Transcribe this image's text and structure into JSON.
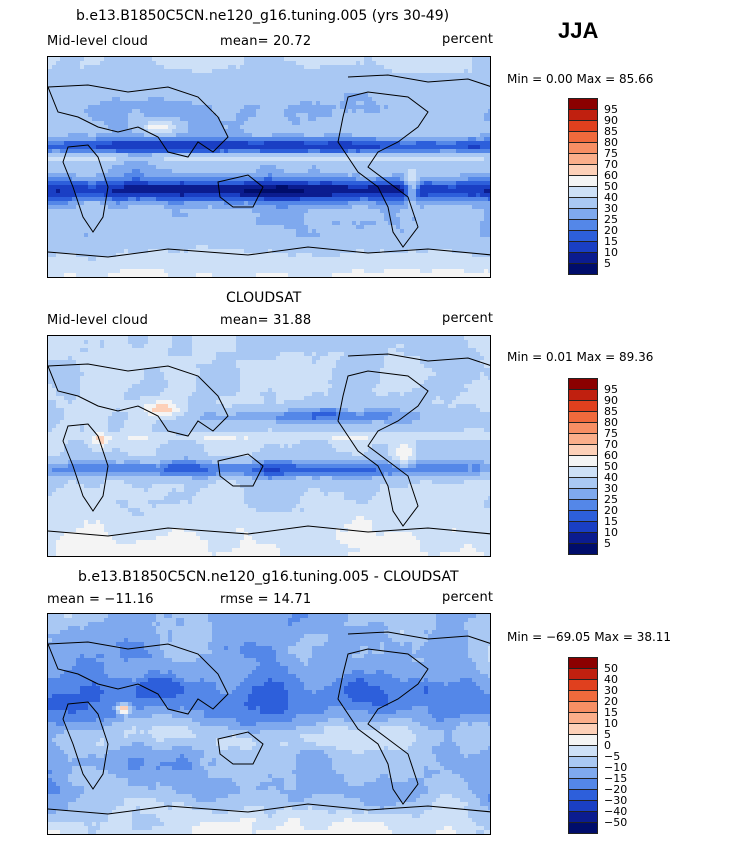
{
  "season": "JJA",
  "panels": [
    {
      "title": "b.e13.B1850C5CN.ne120_g16.tuning.005 (yrs 30-49)",
      "left_label": "Mid-level cloud",
      "mid_label": "mean=  20.72",
      "right_label": "percent",
      "minmax": "Min =    0.00 Max =   85.66",
      "colorbar_labels": [
        "95",
        "90",
        "85",
        "80",
        "75",
        "70",
        "60",
        "50",
        "40",
        "30",
        "25",
        "20",
        "15",
        "10",
        "5"
      ],
      "colors": [
        "#8b0000",
        "#c0200f",
        "#e0401e",
        "#f06a3c",
        "#f78f64",
        "#fbae8a",
        "#fdd0b8",
        "#f4f4f4",
        "#cde0f7",
        "#a9c8f3",
        "#7fa9ee",
        "#5487e8",
        "#2d5fdb",
        "#1a3fc4",
        "#0b1c8f",
        "#000d6b"
      ],
      "kind": "model"
    },
    {
      "title": "CLOUDSAT",
      "left_label": "Mid-level cloud",
      "mid_label": "mean=  31.88",
      "right_label": "percent",
      "minmax": "Min =    0.01 Max =   89.36",
      "colorbar_labels": [
        "95",
        "90",
        "85",
        "80",
        "75",
        "70",
        "60",
        "50",
        "40",
        "30",
        "25",
        "20",
        "15",
        "10",
        "5"
      ],
      "colors": [
        "#8b0000",
        "#c0200f",
        "#e0401e",
        "#f06a3c",
        "#f78f64",
        "#fbae8a",
        "#fdd0b8",
        "#f4f4f4",
        "#cde0f7",
        "#a9c8f3",
        "#7fa9ee",
        "#5487e8",
        "#2d5fdb",
        "#1a3fc4",
        "#0b1c8f",
        "#000d6b"
      ],
      "kind": "obs"
    },
    {
      "title": "b.e13.B1850C5CN.ne120_g16.tuning.005 - CLOUDSAT",
      "left_label": "mean = −11.16",
      "mid_label": "rmse =   14.71",
      "right_label": "percent",
      "minmax": "Min = −69.05 Max =   38.11",
      "colorbar_labels": [
        "50",
        "40",
        "30",
        "20",
        "15",
        "10",
        "5",
        "0",
        "−5",
        "−10",
        "−15",
        "−20",
        "−30",
        "−40",
        "−50"
      ],
      "colors": [
        "#8b0000",
        "#c0200f",
        "#e0401e",
        "#f06a3c",
        "#f78f64",
        "#fbae8a",
        "#fdd0b8",
        "#f4f4f4",
        "#cde0f7",
        "#a9c8f3",
        "#7fa9ee",
        "#5487e8",
        "#2d5fdb",
        "#1a3fc4",
        "#0b1c8f",
        "#000d6b"
      ],
      "kind": "diff"
    }
  ]
}
